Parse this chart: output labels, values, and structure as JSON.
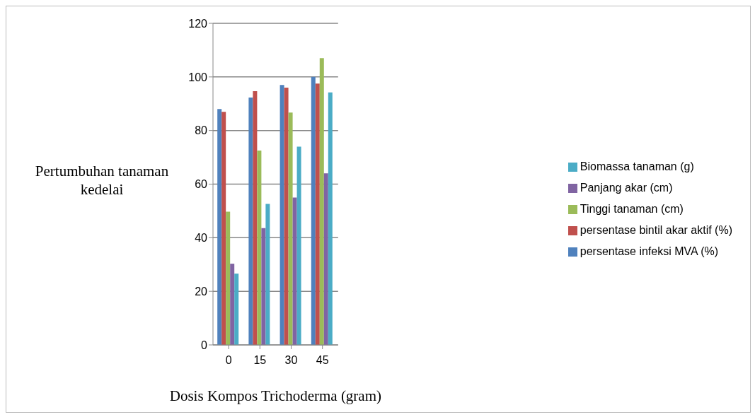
{
  "chart_data": {
    "type": "bar",
    "xlabel": "Dosis Kompos Trichoderma (gram)",
    "ylabel": "Pertumbuhan tanaman kedelai",
    "categories": [
      "0",
      "15",
      "30",
      "45"
    ],
    "series": [
      {
        "name": "persentase infeksi MVA  (%)",
        "color": "#4f81bd",
        "values": [
          88,
          92.3,
          97,
          100
        ]
      },
      {
        "name": "persentase bintil akar aktif (%)",
        "color": "#c0504d",
        "values": [
          87,
          94.7,
          96,
          97.5
        ]
      },
      {
        "name": "Tinggi tanaman  (cm)",
        "color": "#9bbb59",
        "values": [
          49.7,
          72.5,
          86.7,
          107
        ]
      },
      {
        "name": "Panjang akar  (cm)",
        "color": "#8064a2",
        "values": [
          30.3,
          43.6,
          55,
          64
        ]
      },
      {
        "name": "Biomassa tanaman  (g)",
        "color": "#4bacc6",
        "values": [
          26.6,
          52.6,
          74,
          94.2
        ]
      }
    ],
    "ylim": [
      0,
      120
    ],
    "yticks": [
      0,
      20,
      40,
      60,
      80,
      100,
      120
    ],
    "grid": "y",
    "legend": "right"
  }
}
